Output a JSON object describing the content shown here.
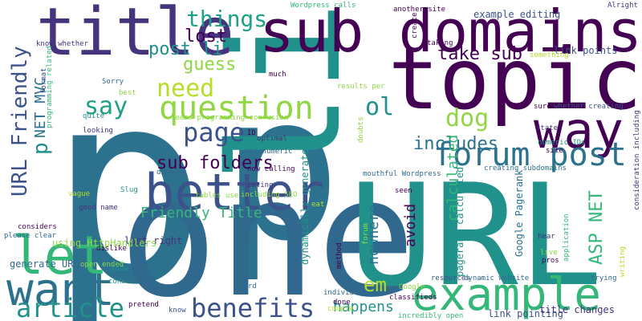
{
  "colors": {
    "purple_dark": "#440154",
    "indigo": "#3b528b",
    "navy": "#46337e",
    "teal_blue": "#2c728e",
    "steel": "#31688e",
    "teal": "#21918c",
    "green_teal": "#1fa187",
    "green": "#35b779",
    "lime": "#90d743",
    "yellow_green": "#b5de2b"
  },
  "words": [
    {
      "text": "p",
      "color": "#2c728e",
      "rot": false
    },
    {
      "text": "p",
      "color": "#2c728e",
      "rot": false
    },
    {
      "text": "li",
      "color": "#21918c",
      "rot": true
    },
    {
      "text": "one",
      "color": "#31688e",
      "rot": false
    },
    {
      "text": "URL",
      "color": "#21918c",
      "rot": false
    },
    {
      "text": "topic",
      "color": "#440154",
      "rot": false
    },
    {
      "text": "title",
      "color": "#46337e",
      "rot": false
    },
    {
      "text": "sub domains",
      "color": "#440154",
      "rot": false
    },
    {
      "text": "way",
      "color": "#440154",
      "rot": false
    },
    {
      "text": "better",
      "color": "#3b528b",
      "rot": false
    },
    {
      "text": "want",
      "color": "#2c728e",
      "rot": false
    },
    {
      "text": "let",
      "color": "#35b779",
      "rot": false
    },
    {
      "text": "example",
      "color": "#35b779",
      "rot": false
    },
    {
      "text": "question",
      "color": "#90d743",
      "rot": false
    },
    {
      "text": "forum post",
      "color": "#2c728e",
      "rot": false
    },
    {
      "text": "page",
      "color": "#3b528b",
      "rot": false
    },
    {
      "text": "benefits",
      "color": "#3b528b",
      "rot": false
    },
    {
      "text": "article",
      "color": "#21918c",
      "rot": false
    },
    {
      "text": "need",
      "color": "#b5de2b",
      "rot": false
    },
    {
      "text": "say",
      "color": "#1fa187",
      "rot": false
    },
    {
      "text": "things",
      "color": "#1fa187",
      "rot": false
    },
    {
      "text": "dog",
      "color": "#90d743",
      "rot": false
    },
    {
      "text": "ol",
      "color": "#21918c",
      "rot": false
    },
    {
      "text": "post li",
      "color": "#21918c",
      "rot": false
    },
    {
      "text": "guess",
      "color": "#90d743",
      "rot": false
    },
    {
      "text": "lost",
      "color": "#440154",
      "rot": false
    },
    {
      "text": "take sub",
      "color": "#440154",
      "rot": false
    },
    {
      "text": "includes",
      "color": "#2c728e",
      "rot": false
    },
    {
      "text": "sub folders",
      "color": "#440154",
      "rot": false
    },
    {
      "text": "Friendly Title",
      "color": "#35b779",
      "rot": false
    },
    {
      "text": "em",
      "color": "#b5de2b",
      "rot": false
    },
    {
      "text": "happens",
      "color": "#21918c",
      "rot": false
    },
    {
      "text": "lost right",
      "color": "#46337e",
      "rot": false
    },
    {
      "text": "generate URLs",
      "color": "#31688e",
      "rot": false
    },
    {
      "text": "using HttpHandlers",
      "color": "#90d743",
      "rot": false
    },
    {
      "text": "good name",
      "color": "#46337e",
      "rot": false
    },
    {
      "text": "vague",
      "color": "#b5de2b",
      "rot": false
    },
    {
      "text": "Sorry",
      "color": "#31688e",
      "rot": false
    },
    {
      "text": "much",
      "color": "#440154",
      "rot": false
    },
    {
      "text": "looking",
      "color": "#46337e",
      "rot": false
    },
    {
      "text": "quite",
      "color": "#21918c",
      "rot": false
    },
    {
      "text": "considers",
      "color": "#440154",
      "rot": false
    },
    {
      "text": "please clear",
      "color": "#31688e",
      "rot": false
    },
    {
      "text": "dislike",
      "color": "#440154",
      "rot": false
    },
    {
      "text": "open ended",
      "color": "#90d743",
      "rot": false
    },
    {
      "text": "cons",
      "color": "#21918c",
      "rot": false
    },
    {
      "text": "show",
      "color": "#21918c",
      "rot": false
    },
    {
      "text": "pretend",
      "color": "#440154",
      "rot": false
    },
    {
      "text": "know",
      "color": "#3b528b",
      "rot": false
    },
    {
      "text": "word",
      "color": "#2c728e",
      "rot": false
    },
    {
      "text": "done",
      "color": "#440154",
      "rot": false
    },
    {
      "text": "individual",
      "color": "#31688e",
      "rot": false
    },
    {
      "text": "couple",
      "color": "#b5de2b",
      "rot": false
    },
    {
      "text": "incredibly open",
      "color": "#35b779",
      "rot": false
    },
    {
      "text": "link pointing",
      "color": "#3b528b",
      "rot": false
    },
    {
      "text": "resources",
      "color": "#3b528b",
      "rot": false
    },
    {
      "text": "dynamic website",
      "color": "#31688e",
      "rot": false
    },
    {
      "text": "Google",
      "color": "#90d743",
      "rot": false
    },
    {
      "text": "classifieds",
      "color": "#440154",
      "rot": false
    },
    {
      "text": "title changes",
      "color": "#46337e",
      "rot": false
    },
    {
      "text": "trying",
      "color": "#31688e",
      "rot": false
    },
    {
      "text": "pros",
      "color": "#440154",
      "rot": false
    },
    {
      "text": "live",
      "color": "#90d743",
      "rot": false
    },
    {
      "text": "hear",
      "color": "#46337e",
      "rot": false
    },
    {
      "text": "seen",
      "color": "#440154",
      "rot": false
    },
    {
      "text": "eat",
      "color": "#b5de2b",
      "rot": false
    },
    {
      "text": "tables use",
      "color": "#90d743",
      "rot": false
    },
    {
      "text": "eating",
      "color": "#46337e",
      "rot": false
    },
    {
      "text": "including SEO",
      "color": "#90d743",
      "rot": false
    },
    {
      "text": "Slug",
      "color": "#21918c",
      "rot": false
    },
    {
      "text": "domains",
      "color": "#31688e",
      "rot": false
    },
    {
      "text": "now calling",
      "color": "#440154",
      "rot": false
    },
    {
      "text": "mouthful Wordpress",
      "color": "#31688e",
      "rot": false
    },
    {
      "text": "creating subdomains",
      "color": "#2c728e",
      "rot": false
    },
    {
      "text": "numeric IDs",
      "color": "#21918c",
      "rot": false
    },
    {
      "text": "site",
      "color": "#440154",
      "rot": false
    },
    {
      "text": "state",
      "color": "#46337e",
      "rot": false
    },
    {
      "text": "sure",
      "color": "#440154",
      "rot": false
    },
    {
      "text": "whether creating",
      "color": "#3b528b",
      "rot": false
    },
    {
      "text": "results per",
      "color": "#90d743",
      "rot": false
    },
    {
      "text": "seems programming confusion",
      "color": "#90d743",
      "rot": false
    },
    {
      "text": "optimal",
      "color": "#46337e",
      "rot": false
    },
    {
      "text": "use numeric",
      "color": "#31688e",
      "rot": false
    },
    {
      "text": "ID",
      "color": "#440154",
      "rot": false
    },
    {
      "text": "best",
      "color": "#90d743",
      "rot": false
    },
    {
      "text": "link points",
      "color": "#3b528b",
      "rot": false
    },
    {
      "text": "something",
      "color": "#b5de2b",
      "rot": false
    },
    {
      "text": "taking",
      "color": "#440154",
      "rot": false
    },
    {
      "text": "example editing",
      "color": "#3b528b",
      "rot": false
    },
    {
      "text": "another site",
      "color": "#440154",
      "rot": false
    },
    {
      "text": "Wordpress calls",
      "color": "#35b779",
      "rot": false
    },
    {
      "text": "Alright",
      "color": "#46337e",
      "rot": false
    },
    {
      "text": "know whether",
      "color": "#46337e",
      "rot": false
    },
    {
      "text": "NET MVC",
      "color": "#2c728e",
      "rot": true
    },
    {
      "text": "URL Friendly",
      "color": "#3b528b",
      "rot": true
    },
    {
      "text": "p",
      "color": "#21918c",
      "rot": true
    },
    {
      "text": "calculated",
      "color": "#35b779",
      "rot": true
    },
    {
      "text": "ASP NET",
      "color": "#35b779",
      "rot": true
    },
    {
      "text": "Google Pagerank",
      "color": "#2c728e",
      "rot": true
    },
    {
      "text": "pagerank calculated",
      "color": "#21918c",
      "rot": true
    },
    {
      "text": "avoid",
      "color": "#440154",
      "rot": true
    },
    {
      "text": "nowhere",
      "color": "#2c728e",
      "rot": true
    },
    {
      "text": "dynamically generate",
      "color": "#21918c",
      "rot": true
    },
    {
      "text": "method",
      "color": "#440154",
      "rot": true
    },
    {
      "text": "forum",
      "color": "#90d743",
      "rot": true
    },
    {
      "text": "doubts",
      "color": "#90d743",
      "rot": true
    },
    {
      "text": "create",
      "color": "#440154",
      "rot": true
    },
    {
      "text": "application",
      "color": "#35b779",
      "rot": true
    },
    {
      "text": "writing",
      "color": "#b5de2b",
      "rot": true
    },
    {
      "text": "consideration including",
      "color": "#46337e",
      "rot": true
    },
    {
      "text": "format",
      "color": "#3b528b",
      "rot": true
    },
    {
      "text": "programming related",
      "color": "#35b779",
      "rot": true
    }
  ]
}
